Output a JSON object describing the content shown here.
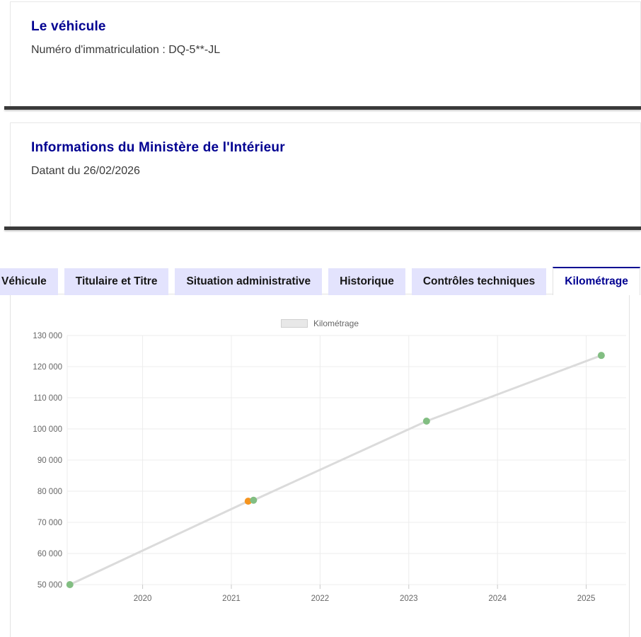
{
  "colors": {
    "accent_blue": "#000091",
    "body_text": "#3a3a3a",
    "tab_background": "#e3e3fd",
    "card_bottom_bar": "#3a3a3a",
    "point_green": "#82be82",
    "point_orange": "#f5941f"
  },
  "cards": [
    {
      "title": "Le véhicule",
      "subtitle": "Numéro d'immatriculation : DQ-5**-JL"
    },
    {
      "title": "Informations du Ministère de l'Intérieur",
      "subtitle": "Datant du 26/02/2026"
    }
  ],
  "tabs": {
    "items": [
      {
        "label": "Véhicule",
        "active": false
      },
      {
        "label": "Titulaire et Titre",
        "active": false
      },
      {
        "label": "Situation administrative",
        "active": false
      },
      {
        "label": "Historique",
        "active": false
      },
      {
        "label": "Contrôles techniques",
        "active": false
      },
      {
        "label": "Kilométrage",
        "active": true
      }
    ]
  },
  "chart_data": {
    "type": "line",
    "title": "",
    "legend": {
      "label": "Kilométrage",
      "position": "top-center"
    },
    "xlabel": "",
    "ylabel": "",
    "xlim": [
      2019.15,
      2025.45
    ],
    "ylim": [
      50000,
      130000
    ],
    "grid": true,
    "grid_color": "#ececec",
    "line_color": "#dbdbdb",
    "x_ticks": [
      {
        "value": 2020,
        "label": "2020"
      },
      {
        "value": 2021,
        "label": "2021"
      },
      {
        "value": 2022,
        "label": "2022"
      },
      {
        "value": 2023,
        "label": "2023"
      },
      {
        "value": 2024,
        "label": "2024"
      },
      {
        "value": 2025,
        "label": "2025"
      }
    ],
    "y_ticks": [
      {
        "value": 50000,
        "label": "50 000"
      },
      {
        "value": 60000,
        "label": "60 000"
      },
      {
        "value": 70000,
        "label": "70 000"
      },
      {
        "value": 80000,
        "label": "80 000"
      },
      {
        "value": 90000,
        "label": "90 000"
      },
      {
        "value": 100000,
        "label": "100 000"
      },
      {
        "value": 110000,
        "label": "110 000"
      },
      {
        "value": 120000,
        "label": "120 000"
      },
      {
        "value": 130000,
        "label": "130 000"
      }
    ],
    "points": [
      {
        "x": 2019.18,
        "y": 50000,
        "color": "#82be82"
      },
      {
        "x": 2021.19,
        "y": 76800,
        "color": "#f5941f"
      },
      {
        "x": 2021.25,
        "y": 77100,
        "color": "#82be82"
      },
      {
        "x": 2023.2,
        "y": 102500,
        "color": "#82be82"
      },
      {
        "x": 2025.17,
        "y": 123600,
        "color": "#82be82"
      }
    ]
  }
}
